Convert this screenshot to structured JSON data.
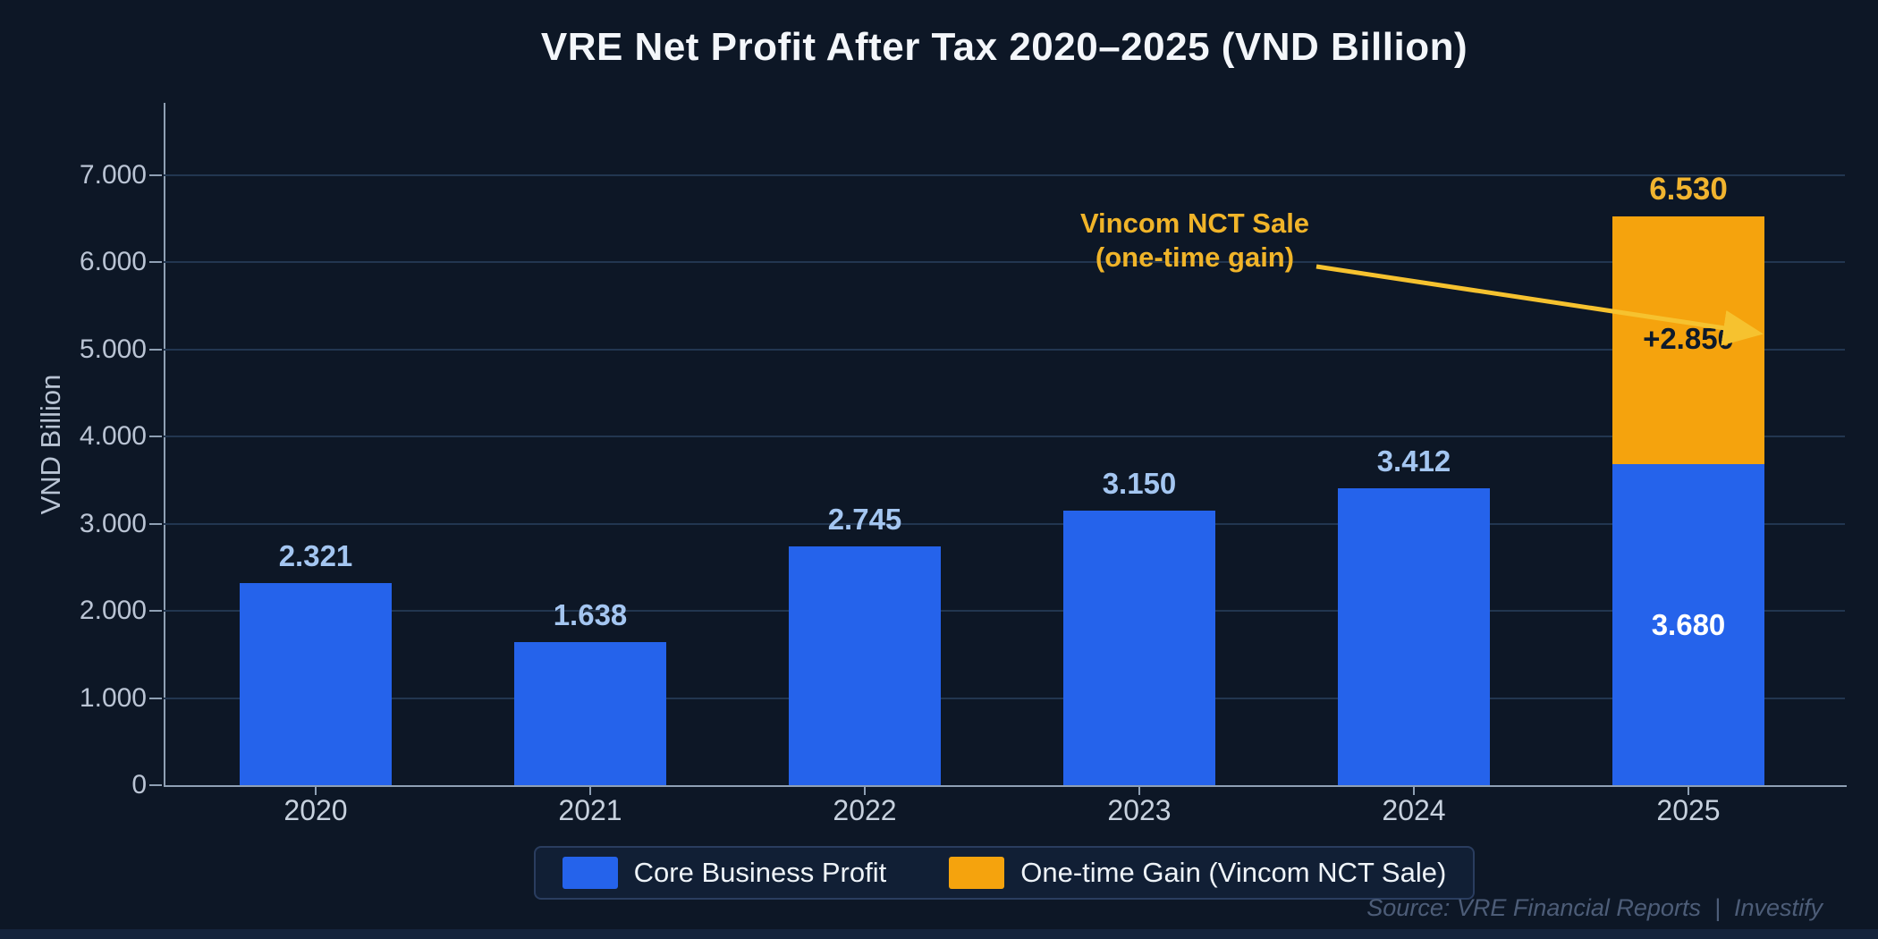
{
  "title": "VRE Net Profit After Tax 2020–2025 (VND Billion)",
  "source_note": "Source: VRE Financial Reports  |  Investify",
  "annotation": {
    "line1": "Vincom NCT Sale",
    "line2": "(one-time gain)"
  },
  "legend": {
    "items": [
      {
        "label": "Core Business Profit",
        "color": "#2563eb"
      },
      {
        "label": "One-time Gain (Vincom NCT Sale)",
        "color": "#f5a30d"
      }
    ]
  },
  "colors": {
    "background": "#0d1726",
    "grid": "#223650",
    "axis": "#8fa0b4",
    "title_text": "#f3f6fa",
    "tick_text": "#bac4d4",
    "year_text": "#c7d1de",
    "bar_label_blue": "#a4c6f1",
    "gold": "#f1b42f",
    "arrow": "#f6c22f",
    "core_blue": "#2563eb",
    "gain_orange": "#f5a30d",
    "inside_dark": "#0e1a2b",
    "inside_white": "#ffffff",
    "source_text": "#4d5d78"
  },
  "chart_data": {
    "type": "bar",
    "stacked": true,
    "title": "VRE Net Profit After Tax 2020–2025 (VND Billion)",
    "xlabel": "",
    "ylabel": "VND Billion",
    "ylim": [
      0,
      7800
    ],
    "grid": "horizontal",
    "legend_position": "bottom-center",
    "categories": [
      "2020",
      "2021",
      "2022",
      "2023",
      "2024",
      "2025"
    ],
    "series": [
      {
        "name": "Core Business Profit",
        "color": "#2563eb",
        "values": [
          2321,
          1638,
          2745,
          3150,
          3412,
          3680
        ]
      },
      {
        "name": "One-time Gain (Vincom NCT Sale)",
        "color": "#f5a30d",
        "values": [
          0,
          0,
          0,
          0,
          0,
          2850
        ]
      }
    ],
    "totals": [
      2321,
      1638,
      2745,
      3150,
      3412,
      6530
    ],
    "total_labels": [
      {
        "text": "2.321",
        "color": "#a4c6f1"
      },
      {
        "text": "1.638",
        "color": "#a4c6f1"
      },
      {
        "text": "2.745",
        "color": "#a4c6f1"
      },
      {
        "text": "3.150",
        "color": "#a4c6f1"
      },
      {
        "text": "3.412",
        "color": "#a4c6f1"
      },
      {
        "text": "6.530",
        "color": "#f1b42f"
      }
    ],
    "segment_labels_2025": [
      {
        "text": "3.680",
        "value": 3680,
        "color": "#ffffff"
      },
      {
        "text": "+2.850",
        "value": 2850,
        "color": "#0e1a2b"
      }
    ],
    "y_ticks": {
      "values": [
        0,
        1000,
        2000,
        3000,
        4000,
        5000,
        6000,
        7000
      ],
      "labels": [
        "0",
        "1.000",
        "2.000",
        "3.000",
        "4.000",
        "5.000",
        "6.000",
        "7.000"
      ]
    },
    "annotation": {
      "text": "Vincom NCT Sale (one-time gain)",
      "points_to": "2025 one-time gain segment"
    }
  }
}
